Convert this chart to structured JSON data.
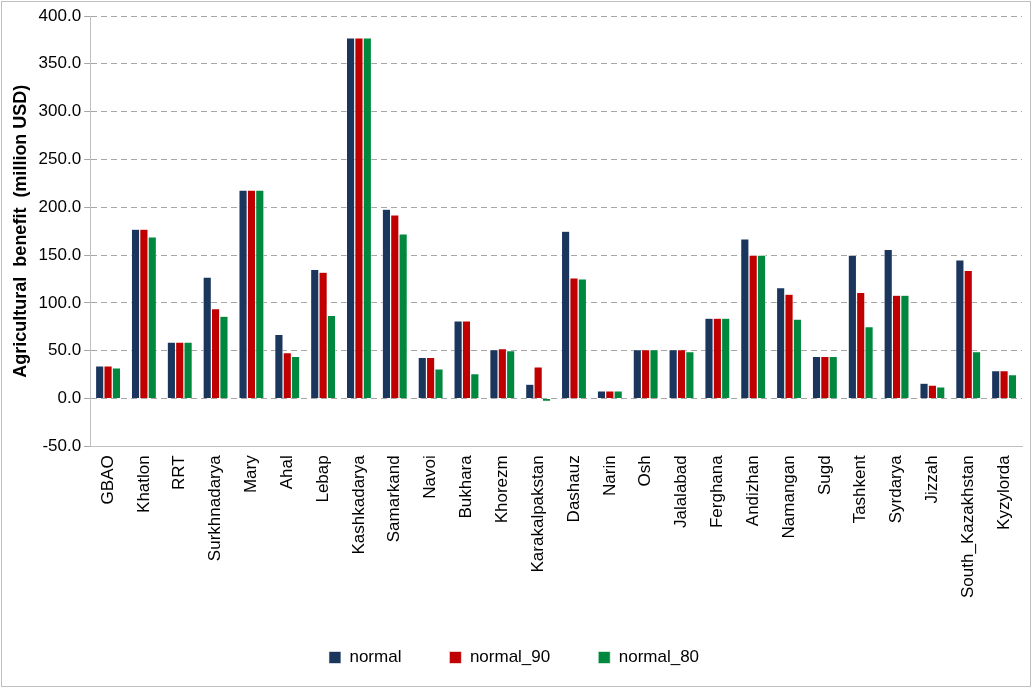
{
  "chart_data": {
    "type": "bar",
    "ylabel": "Agricultural  benefit  (million USD)",
    "categories": [
      "GBAO",
      "Khatlon",
      "RRT",
      "Surkhnadarya",
      "Mary",
      "Ahal",
      "Lebap",
      "Kashkadarya",
      "Samarkand",
      "Navoi",
      "Bukhara",
      "Khorezm",
      "Karakalpakstan",
      "Dashauz",
      "Narin",
      "Osh",
      "Jalalabad",
      "Ferghana",
      "Andizhan",
      "Namangan",
      "Sugd",
      "Tashkent",
      "Syrdarya",
      "Jizzah",
      "South_Kazakhstan",
      "Kyzylorda"
    ],
    "series": [
      {
        "name": "normal",
        "color": "#1b365d",
        "values": [
          34,
          177,
          59,
          127,
          218,
          67,
          135,
          377,
          198,
          43,
          81,
          51,
          15,
          175,
          8,
          51,
          51,
          84,
          167,
          116,
          44,
          150,
          156,
          16,
          145,
          29
        ]
      },
      {
        "name": "normal_90",
        "color": "#c00000",
        "values": [
          34,
          177,
          59,
          94,
          218,
          48,
          132,
          377,
          192,
          43,
          81,
          52,
          33,
          126,
          8,
          51,
          51,
          84,
          150,
          109,
          44,
          111,
          108,
          14,
          134,
          29
        ]
      },
      {
        "name": "normal_80",
        "color": "#00893e",
        "values": [
          32,
          169,
          59,
          86,
          218,
          44,
          87,
          377,
          172,
          31,
          26,
          50,
          -3,
          125,
          8,
          51,
          49,
          84,
          150,
          83,
          44,
          75,
          108,
          12,
          49,
          25
        ]
      }
    ],
    "ylim": [
      -50,
      400
    ],
    "yticks": [
      {
        "value": -50,
        "label": "-50.0"
      },
      {
        "value": 0,
        "label": "0.0"
      },
      {
        "value": 50,
        "label": "50.0"
      },
      {
        "value": 100,
        "label": "100.0"
      },
      {
        "value": 150,
        "label": "150.0"
      },
      {
        "value": 200,
        "label": "200.0"
      },
      {
        "value": 250,
        "label": "250.0"
      },
      {
        "value": 300,
        "label": "300.0"
      },
      {
        "value": 350,
        "label": "350.0"
      },
      {
        "value": 400,
        "label": "400.0"
      }
    ],
    "grid": "y",
    "legend": "bottom"
  }
}
